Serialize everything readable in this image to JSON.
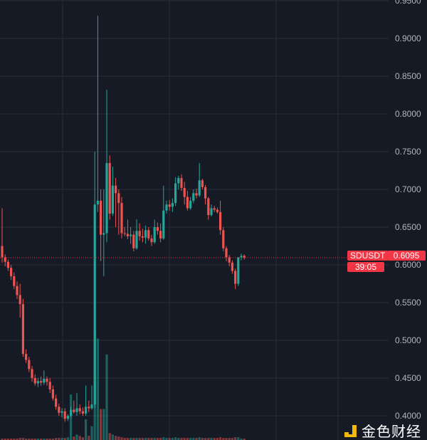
{
  "chart_data": {
    "type": "candlestick",
    "symbol": "SDUSDT",
    "last_price": "0.6095",
    "countdown": "39:05",
    "ylim": [
      0.4,
      0.95
    ],
    "y_ticks": [
      "0.9500",
      "0.9000",
      "0.8500",
      "0.8000",
      "0.7500",
      "0.7000",
      "0.6500",
      "0.6000",
      "0.5500",
      "0.5000",
      "0.4500",
      "0.4000"
    ],
    "grid": true,
    "colors": {
      "up": "#26a69a",
      "down": "#ef5350",
      "background": "#161a25",
      "grid": "#2a2e39",
      "label": "#f23645"
    },
    "ohlc": [
      [
        0.625,
        0.675,
        0.603,
        0.61
      ],
      [
        0.61,
        0.614,
        0.598,
        0.604
      ],
      [
        0.604,
        0.607,
        0.592,
        0.596
      ],
      [
        0.596,
        0.6,
        0.58,
        0.585
      ],
      [
        0.585,
        0.59,
        0.568,
        0.572
      ],
      [
        0.572,
        0.578,
        0.555,
        0.56
      ],
      [
        0.56,
        0.575,
        0.53,
        0.548
      ],
      [
        0.548,
        0.555,
        0.478,
        0.482
      ],
      [
        0.482,
        0.488,
        0.47,
        0.474
      ],
      [
        0.474,
        0.478,
        0.458,
        0.462
      ],
      [
        0.462,
        0.466,
        0.445,
        0.45
      ],
      [
        0.45,
        0.455,
        0.44,
        0.443
      ],
      [
        0.443,
        0.45,
        0.438,
        0.446
      ],
      [
        0.446,
        0.452,
        0.44,
        0.444
      ],
      [
        0.444,
        0.46,
        0.441,
        0.449
      ],
      [
        0.449,
        0.452,
        0.44,
        0.445
      ],
      [
        0.445,
        0.45,
        0.43,
        0.435
      ],
      [
        0.435,
        0.44,
        0.42,
        0.423
      ],
      [
        0.423,
        0.428,
        0.408,
        0.412
      ],
      [
        0.412,
        0.416,
        0.4,
        0.404
      ],
      [
        0.404,
        0.41,
        0.398,
        0.406
      ],
      [
        0.406,
        0.41,
        0.392,
        0.396
      ],
      [
        0.396,
        0.402,
        0.393,
        0.4
      ],
      [
        0.4,
        0.412,
        0.398,
        0.408
      ],
      [
        0.408,
        0.42,
        0.403,
        0.405
      ],
      [
        0.405,
        0.43,
        0.4,
        0.41
      ],
      [
        0.41,
        0.415,
        0.402,
        0.406
      ],
      [
        0.406,
        0.411,
        0.4,
        0.403
      ],
      [
        0.403,
        0.44,
        0.4,
        0.412
      ],
      [
        0.412,
        0.42,
        0.405,
        0.41
      ],
      [
        0.41,
        0.44,
        0.408,
        0.415
      ],
      [
        0.415,
        0.75,
        0.41,
        0.68
      ],
      [
        0.68,
        0.93,
        0.67,
        0.685
      ],
      [
        0.685,
        0.7,
        0.605,
        0.64
      ],
      [
        0.64,
        0.7,
        0.585,
        0.642
      ],
      [
        0.642,
        0.832,
        0.63,
        0.735
      ],
      [
        0.735,
        0.745,
        0.66,
        0.668
      ],
      [
        0.668,
        0.73,
        0.665,
        0.705
      ],
      [
        0.705,
        0.715,
        0.65,
        0.695
      ],
      [
        0.695,
        0.7,
        0.64,
        0.682
      ],
      [
        0.682,
        0.69,
        0.635,
        0.642
      ],
      [
        0.642,
        0.65,
        0.638,
        0.641
      ],
      [
        0.641,
        0.66,
        0.634,
        0.638
      ],
      [
        0.638,
        0.65,
        0.628,
        0.64
      ],
      [
        0.64,
        0.645,
        0.618,
        0.622
      ],
      [
        0.622,
        0.66,
        0.62,
        0.645
      ],
      [
        0.645,
        0.655,
        0.632,
        0.638
      ],
      [
        0.638,
        0.648,
        0.63,
        0.636
      ],
      [
        0.636,
        0.652,
        0.628,
        0.646
      ],
      [
        0.646,
        0.65,
        0.632,
        0.635
      ],
      [
        0.635,
        0.64,
        0.625,
        0.63
      ],
      [
        0.63,
        0.66,
        0.628,
        0.65
      ],
      [
        0.65,
        0.656,
        0.64,
        0.645
      ],
      [
        0.645,
        0.655,
        0.63,
        0.635
      ],
      [
        0.635,
        0.705,
        0.633,
        0.672
      ],
      [
        0.672,
        0.685,
        0.668,
        0.68
      ],
      [
        0.68,
        0.686,
        0.672,
        0.677
      ],
      [
        0.677,
        0.688,
        0.67,
        0.682
      ],
      [
        0.682,
        0.716,
        0.678,
        0.708
      ],
      [
        0.708,
        0.718,
        0.7,
        0.715
      ],
      [
        0.715,
        0.72,
        0.698,
        0.702
      ],
      [
        0.702,
        0.71,
        0.68,
        0.69
      ],
      [
        0.69,
        0.698,
        0.672,
        0.675
      ],
      [
        0.675,
        0.69,
        0.673,
        0.685
      ],
      [
        0.685,
        0.7,
        0.682,
        0.695
      ],
      [
        0.695,
        0.701,
        0.688,
        0.692
      ],
      [
        0.692,
        0.735,
        0.69,
        0.712
      ],
      [
        0.712,
        0.714,
        0.7,
        0.703
      ],
      [
        0.703,
        0.706,
        0.68,
        0.688
      ],
      [
        0.688,
        0.69,
        0.66,
        0.666
      ],
      [
        0.666,
        0.68,
        0.664,
        0.675
      ],
      [
        0.675,
        0.678,
        0.67,
        0.673
      ],
      [
        0.673,
        0.676,
        0.668,
        0.67
      ],
      [
        0.67,
        0.685,
        0.64,
        0.646
      ],
      [
        0.646,
        0.65,
        0.618,
        0.622
      ],
      [
        0.622,
        0.625,
        0.605,
        0.61
      ],
      [
        0.61,
        0.613,
        0.598,
        0.603
      ],
      [
        0.603,
        0.606,
        0.588,
        0.592
      ],
      [
        0.592,
        0.595,
        0.568,
        0.575
      ],
      [
        0.575,
        0.61,
        0.572,
        0.61
      ],
      [
        0.61,
        0.615,
        0.606,
        0.612
      ],
      [
        0.612,
        0.614,
        0.607,
        0.6095
      ]
    ],
    "volume": [
      2,
      2,
      2,
      2,
      2,
      2,
      3,
      3,
      2,
      2,
      2,
      2,
      2,
      2,
      2,
      2,
      2,
      2,
      3,
      3,
      3,
      3,
      4,
      66,
      5,
      8,
      6,
      4,
      30,
      6,
      20,
      160,
      147,
      45,
      45,
      124,
      10,
      8,
      6,
      5,
      4,
      3,
      3,
      3,
      3,
      3,
      3,
      3,
      3,
      3,
      3,
      3,
      3,
      3,
      4,
      3,
      3,
      3,
      4,
      3,
      3,
      3,
      3,
      3,
      3,
      3,
      4,
      3,
      3,
      3,
      3,
      3,
      3,
      4,
      3,
      3,
      3,
      3,
      4,
      4,
      2,
      2
    ]
  },
  "watermark": {
    "text": "金色财经",
    "icon": "jinse-logo-icon",
    "color": "#f0b90b"
  }
}
